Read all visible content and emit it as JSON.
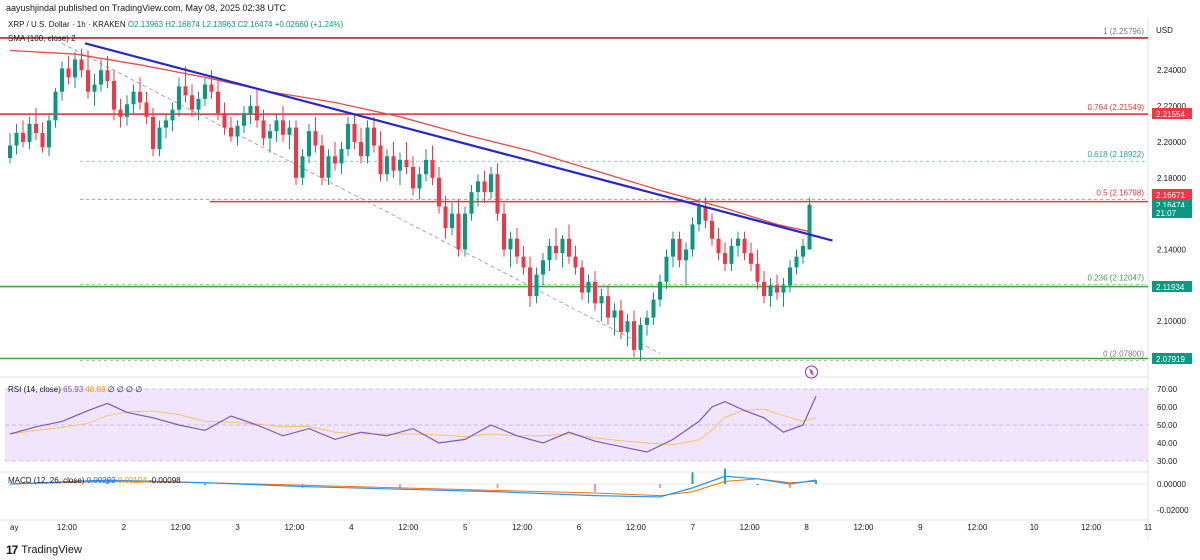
{
  "caption": "aayushjindal published on TradingView.com, May 08, 2025 02:38 UTC",
  "brand": {
    "mark": "17",
    "name": "TradingView"
  },
  "header": {
    "symbol": "XRP / U.S. Dollar · 1h · KRAKEN",
    "ohlc": "O2.13963 H2.16874 L2.13963 C2.16474 +0.02660 (+1.24%)"
  },
  "sma_label": "SMA (100, close)  2",
  "rsi_label": {
    "name": "RSI (14, close)",
    "value": "65.93",
    "ma": "48.89",
    "rest": "∅ ∅ ∅ ∅"
  },
  "macd_label": {
    "name": "MACD (12, 26, close)",
    "v1": "0.00292",
    "v2": "0.00194",
    "v3": "-0.00098"
  },
  "currency": "USD",
  "price_ticks": [
    "2.24000",
    "2.22000",
    "2.20000",
    "2.18000",
    "2.14000",
    "2.10000"
  ],
  "price_tags": [
    {
      "label": "2.21554",
      "color": "#f23645"
    },
    {
      "label": "2.16671",
      "color": "#f23645"
    },
    {
      "label": "2.16474",
      "color": "#089981"
    },
    {
      "label": "21:07",
      "color": "#089981"
    },
    {
      "label": "2.11934",
      "color": "#089981"
    },
    {
      "label": "2.07919",
      "color": "#089981"
    }
  ],
  "rsi_ticks": [
    "70.00",
    "60.00",
    "50.00",
    "40.00",
    "30.00"
  ],
  "macd_ticks": [
    "0.00000",
    "-0.02000"
  ],
  "time_ticks": [
    "ay",
    "12:00",
    "2",
    "12:00",
    "3",
    "12:00",
    "4",
    "12:00",
    "5",
    "12:00",
    "6",
    "12:00",
    "7",
    "12:00",
    "8",
    "12:00",
    "9",
    "12:00",
    "10",
    "12:00",
    "11"
  ],
  "fib_levels": [
    {
      "ratio": "1",
      "label": "1 (2.25796)",
      "price": 2.25796
    },
    {
      "ratio": "0.764",
      "label": "0.764 (2.21549)",
      "price": 2.21549
    },
    {
      "ratio": "0.618",
      "label": "0.618 (2.18922)",
      "price": 2.18922
    },
    {
      "ratio": "0.5",
      "label": "0.5 (2.16798)",
      "price": 2.16798
    },
    {
      "ratio": "0.236",
      "label": "0.236 (2.12047)",
      "price": 2.12047
    },
    {
      "ratio": "0",
      "label": "0 (2.07800)",
      "price": 2.078
    }
  ],
  "horizontal_levels": [
    {
      "price": 2.258,
      "color": "#b22833"
    },
    {
      "price": 2.2155,
      "color": "#d32f2f"
    },
    {
      "price": 2.1667,
      "color": "#e53935"
    },
    {
      "price": 2.1193,
      "color": "#43a047"
    },
    {
      "price": 2.0792,
      "color": "#43a047"
    }
  ],
  "colors": {
    "up": "#089981",
    "down": "#f23645",
    "trendline": "#2828c8",
    "sma": "#e84a4a",
    "rsi": "#7e57c2",
    "rsi_ma": "#f7c46c",
    "macd": "#2196f3",
    "signal": "#ff6d00",
    "rsi_band": "#f0e5fc"
  },
  "chart_data": {
    "type": "candlestick",
    "symbol": "XRP / U.S. Dollar",
    "timeframe": "1h",
    "ylim": [
      2.07,
      2.268
    ],
    "candles": [
      [
        2.191,
        2.205,
        2.188,
        2.198
      ],
      [
        2.198,
        2.21,
        2.193,
        2.205
      ],
      [
        2.205,
        2.212,
        2.197,
        2.2
      ],
      [
        2.2,
        2.214,
        2.196,
        2.21
      ],
      [
        2.21,
        2.219,
        2.201,
        2.205
      ],
      [
        2.205,
        2.211,
        2.194,
        2.197
      ],
      [
        2.197,
        2.216,
        2.192,
        2.212
      ],
      [
        2.212,
        2.23,
        2.208,
        2.228
      ],
      [
        2.228,
        2.245,
        2.223,
        2.241
      ],
      [
        2.241,
        2.248,
        2.232,
        2.236
      ],
      [
        2.236,
        2.25,
        2.23,
        2.246
      ],
      [
        2.246,
        2.252,
        2.236,
        2.24
      ],
      [
        2.24,
        2.251,
        2.224,
        2.228
      ],
      [
        2.228,
        2.238,
        2.22,
        2.232
      ],
      [
        2.232,
        2.246,
        2.228,
        2.24
      ],
      [
        2.24,
        2.248,
        2.23,
        2.234
      ],
      [
        2.234,
        2.24,
        2.212,
        2.218
      ],
      [
        2.218,
        2.224,
        2.208,
        2.214
      ],
      [
        2.214,
        2.226,
        2.209,
        2.221
      ],
      [
        2.221,
        2.232,
        2.216,
        2.228
      ],
      [
        2.228,
        2.236,
        2.218,
        2.222
      ],
      [
        2.222,
        2.228,
        2.21,
        2.214
      ],
      [
        2.214,
        2.219,
        2.192,
        2.196
      ],
      [
        2.196,
        2.212,
        2.192,
        2.208
      ],
      [
        2.208,
        2.216,
        2.202,
        2.212
      ],
      [
        2.212,
        2.222,
        2.206,
        2.218
      ],
      [
        2.218,
        2.236,
        2.214,
        2.231
      ],
      [
        2.231,
        2.242,
        2.222,
        2.226
      ],
      [
        2.226,
        2.232,
        2.214,
        2.218
      ],
      [
        2.218,
        2.228,
        2.212,
        2.224
      ],
      [
        2.224,
        2.236,
        2.22,
        2.232
      ],
      [
        2.232,
        2.24,
        2.224,
        2.228
      ],
      [
        2.228,
        2.234,
        2.212,
        2.216
      ],
      [
        2.216,
        2.222,
        2.204,
        2.208
      ],
      [
        2.208,
        2.214,
        2.2,
        2.203
      ],
      [
        2.203,
        2.212,
        2.198,
        2.209
      ],
      [
        2.209,
        2.22,
        2.205,
        2.216
      ],
      [
        2.216,
        2.226,
        2.21,
        2.22
      ],
      [
        2.22,
        2.23,
        2.208,
        2.212
      ],
      [
        2.212,
        2.218,
        2.198,
        2.202
      ],
      [
        2.202,
        2.21,
        2.194,
        2.206
      ],
      [
        2.206,
        2.216,
        2.2,
        2.212
      ],
      [
        2.212,
        2.22,
        2.2,
        2.204
      ],
      [
        2.204,
        2.212,
        2.196,
        2.208
      ],
      [
        2.208,
        2.212,
        2.176,
        2.18
      ],
      [
        2.18,
        2.196,
        2.176,
        2.192
      ],
      [
        2.192,
        2.21,
        2.188,
        2.206
      ],
      [
        2.206,
        2.214,
        2.194,
        2.198
      ],
      [
        2.198,
        2.204,
        2.176,
        2.18
      ],
      [
        2.18,
        2.196,
        2.176,
        2.192
      ],
      [
        2.192,
        2.2,
        2.184,
        2.188
      ],
      [
        2.188,
        2.2,
        2.182,
        2.196
      ],
      [
        2.196,
        2.214,
        2.192,
        2.21
      ],
      [
        2.21,
        2.216,
        2.196,
        2.2
      ],
      [
        2.2,
        2.208,
        2.188,
        2.192
      ],
      [
        2.192,
        2.212,
        2.188,
        2.208
      ],
      [
        2.208,
        2.214,
        2.194,
        2.198
      ],
      [
        2.198,
        2.206,
        2.178,
        2.182
      ],
      [
        2.182,
        2.196,
        2.178,
        2.192
      ],
      [
        2.192,
        2.2,
        2.18,
        2.184
      ],
      [
        2.184,
        2.194,
        2.176,
        2.19
      ],
      [
        2.19,
        2.2,
        2.182,
        2.186
      ],
      [
        2.186,
        2.192,
        2.17,
        2.174
      ],
      [
        2.174,
        2.186,
        2.168,
        2.182
      ],
      [
        2.182,
        2.196,
        2.178,
        2.19
      ],
      [
        2.19,
        2.198,
        2.176,
        2.18
      ],
      [
        2.18,
        2.186,
        2.16,
        2.164
      ],
      [
        2.164,
        2.17,
        2.146,
        2.152
      ],
      [
        2.152,
        2.166,
        2.148,
        2.16
      ],
      [
        2.16,
        2.168,
        2.136,
        2.14
      ],
      [
        2.14,
        2.164,
        2.136,
        2.16
      ],
      [
        2.16,
        2.176,
        2.156,
        2.172
      ],
      [
        2.172,
        2.182,
        2.164,
        2.178
      ],
      [
        2.178,
        2.184,
        2.166,
        2.172
      ],
      [
        2.172,
        2.186,
        2.168,
        2.182
      ],
      [
        2.182,
        2.188,
        2.156,
        2.16
      ],
      [
        2.16,
        2.166,
        2.136,
        2.14
      ],
      [
        2.14,
        2.15,
        2.13,
        2.146
      ],
      [
        2.146,
        2.152,
        2.132,
        2.136
      ],
      [
        2.136,
        2.142,
        2.126,
        2.13
      ],
      [
        2.13,
        2.136,
        2.108,
        2.114
      ],
      [
        2.114,
        2.13,
        2.11,
        2.126
      ],
      [
        2.126,
        2.138,
        2.12,
        2.134
      ],
      [
        2.134,
        2.146,
        2.128,
        2.142
      ],
      [
        2.142,
        2.152,
        2.134,
        2.138
      ],
      [
        2.138,
        2.148,
        2.13,
        2.146
      ],
      [
        2.146,
        2.154,
        2.132,
        2.136
      ],
      [
        2.136,
        2.142,
        2.126,
        2.13
      ],
      [
        2.13,
        2.134,
        2.112,
        2.116
      ],
      [
        2.116,
        2.126,
        2.11,
        2.122
      ],
      [
        2.122,
        2.128,
        2.106,
        2.11
      ],
      [
        2.11,
        2.118,
        2.1,
        2.114
      ],
      [
        2.114,
        2.12,
        2.098,
        2.102
      ],
      [
        2.102,
        2.11,
        2.092,
        2.106
      ],
      [
        2.106,
        2.112,
        2.09,
        2.094
      ],
      [
        2.094,
        2.104,
        2.086,
        2.1
      ],
      [
        2.1,
        2.106,
        2.08,
        2.084
      ],
      [
        2.084,
        2.102,
        2.078,
        2.098
      ],
      [
        2.098,
        2.106,
        2.092,
        2.102
      ],
      [
        2.102,
        2.116,
        2.098,
        2.112
      ],
      [
        2.112,
        2.126,
        2.108,
        2.122
      ],
      [
        2.122,
        2.14,
        2.118,
        2.136
      ],
      [
        2.136,
        2.15,
        2.13,
        2.146
      ],
      [
        2.146,
        2.15,
        2.13,
        2.134
      ],
      [
        2.134,
        2.144,
        2.12,
        2.14
      ],
      [
        2.14,
        2.158,
        2.136,
        2.154
      ],
      [
        2.154,
        2.168,
        2.15,
        2.164
      ],
      [
        2.164,
        2.169,
        2.152,
        2.156
      ],
      [
        2.156,
        2.16,
        2.142,
        2.146
      ],
      [
        2.146,
        2.152,
        2.134,
        2.138
      ],
      [
        2.138,
        2.144,
        2.128,
        2.132
      ],
      [
        2.132,
        2.146,
        2.128,
        2.142
      ],
      [
        2.142,
        2.15,
        2.136,
        2.146
      ],
      [
        2.146,
        2.15,
        2.134,
        2.138
      ],
      [
        2.138,
        2.144,
        2.128,
        2.132
      ],
      [
        2.132,
        2.14,
        2.118,
        2.122
      ],
      [
        2.122,
        2.128,
        2.11,
        2.114
      ],
      [
        2.114,
        2.124,
        2.108,
        2.12
      ],
      [
        2.12,
        2.126,
        2.112,
        2.116
      ],
      [
        2.116,
        2.124,
        2.108,
        2.12
      ],
      [
        2.12,
        2.134,
        2.116,
        2.13
      ],
      [
        2.13,
        2.14,
        2.126,
        2.136
      ],
      [
        2.136,
        2.146,
        2.132,
        2.142
      ],
      [
        2.14,
        2.169,
        2.14,
        2.165
      ]
    ],
    "sma100": [
      [
        0,
        2.251
      ],
      [
        10,
        2.249
      ],
      [
        20,
        2.243
      ],
      [
        30,
        2.236
      ],
      [
        40,
        2.228
      ],
      [
        50,
        2.222
      ],
      [
        60,
        2.214
      ],
      [
        70,
        2.204
      ],
      [
        80,
        2.195
      ],
      [
        90,
        2.184
      ],
      [
        100,
        2.173
      ],
      [
        110,
        2.163
      ],
      [
        118,
        2.154
      ],
      [
        123,
        2.15
      ]
    ],
    "trendline": [
      [
        0,
        2.255
      ],
      [
        125,
        2.145
      ]
    ],
    "fib_dashed": [
      [
        8,
        2.255
      ],
      [
        100,
        2.082
      ]
    ],
    "rsi": [
      [
        0,
        45
      ],
      [
        4,
        49
      ],
      [
        8,
        52
      ],
      [
        12,
        58
      ],
      [
        15,
        62
      ],
      [
        18,
        57
      ],
      [
        22,
        54
      ],
      [
        26,
        50
      ],
      [
        30,
        47
      ],
      [
        34,
        55
      ],
      [
        38,
        50
      ],
      [
        42,
        44
      ],
      [
        46,
        48
      ],
      [
        50,
        42
      ],
      [
        54,
        46
      ],
      [
        58,
        44
      ],
      [
        62,
        48
      ],
      [
        66,
        40
      ],
      [
        70,
        42
      ],
      [
        74,
        50
      ],
      [
        78,
        44
      ],
      [
        82,
        40
      ],
      [
        86,
        46
      ],
      [
        90,
        41
      ],
      [
        94,
        38
      ],
      [
        98,
        35
      ],
      [
        102,
        42
      ],
      [
        106,
        52
      ],
      [
        108,
        60
      ],
      [
        110,
        63
      ],
      [
        113,
        58
      ],
      [
        116,
        54
      ],
      [
        119,
        46
      ],
      [
        122,
        50
      ],
      [
        124,
        66
      ]
    ],
    "macd_line": [
      [
        0,
        0.0
      ],
      [
        15,
        0.003
      ],
      [
        30,
        0.001
      ],
      [
        45,
        -0.002
      ],
      [
        60,
        -0.004
      ],
      [
        75,
        -0.006
      ],
      [
        90,
        -0.009
      ],
      [
        100,
        -0.01
      ],
      [
        105,
        -0.003
      ],
      [
        110,
        0.006
      ],
      [
        115,
        0.004
      ],
      [
        120,
        0.0
      ],
      [
        124,
        0.003
      ]
    ],
    "macd_signal": [
      [
        0,
        0.0
      ],
      [
        15,
        0.002
      ],
      [
        30,
        0.001
      ],
      [
        45,
        -0.001
      ],
      [
        60,
        -0.003
      ],
      [
        75,
        -0.005
      ],
      [
        90,
        -0.007
      ],
      [
        100,
        -0.009
      ],
      [
        105,
        -0.006
      ],
      [
        110,
        0.002
      ],
      [
        115,
        0.004
      ],
      [
        120,
        0.001
      ],
      [
        124,
        0.002
      ]
    ]
  }
}
